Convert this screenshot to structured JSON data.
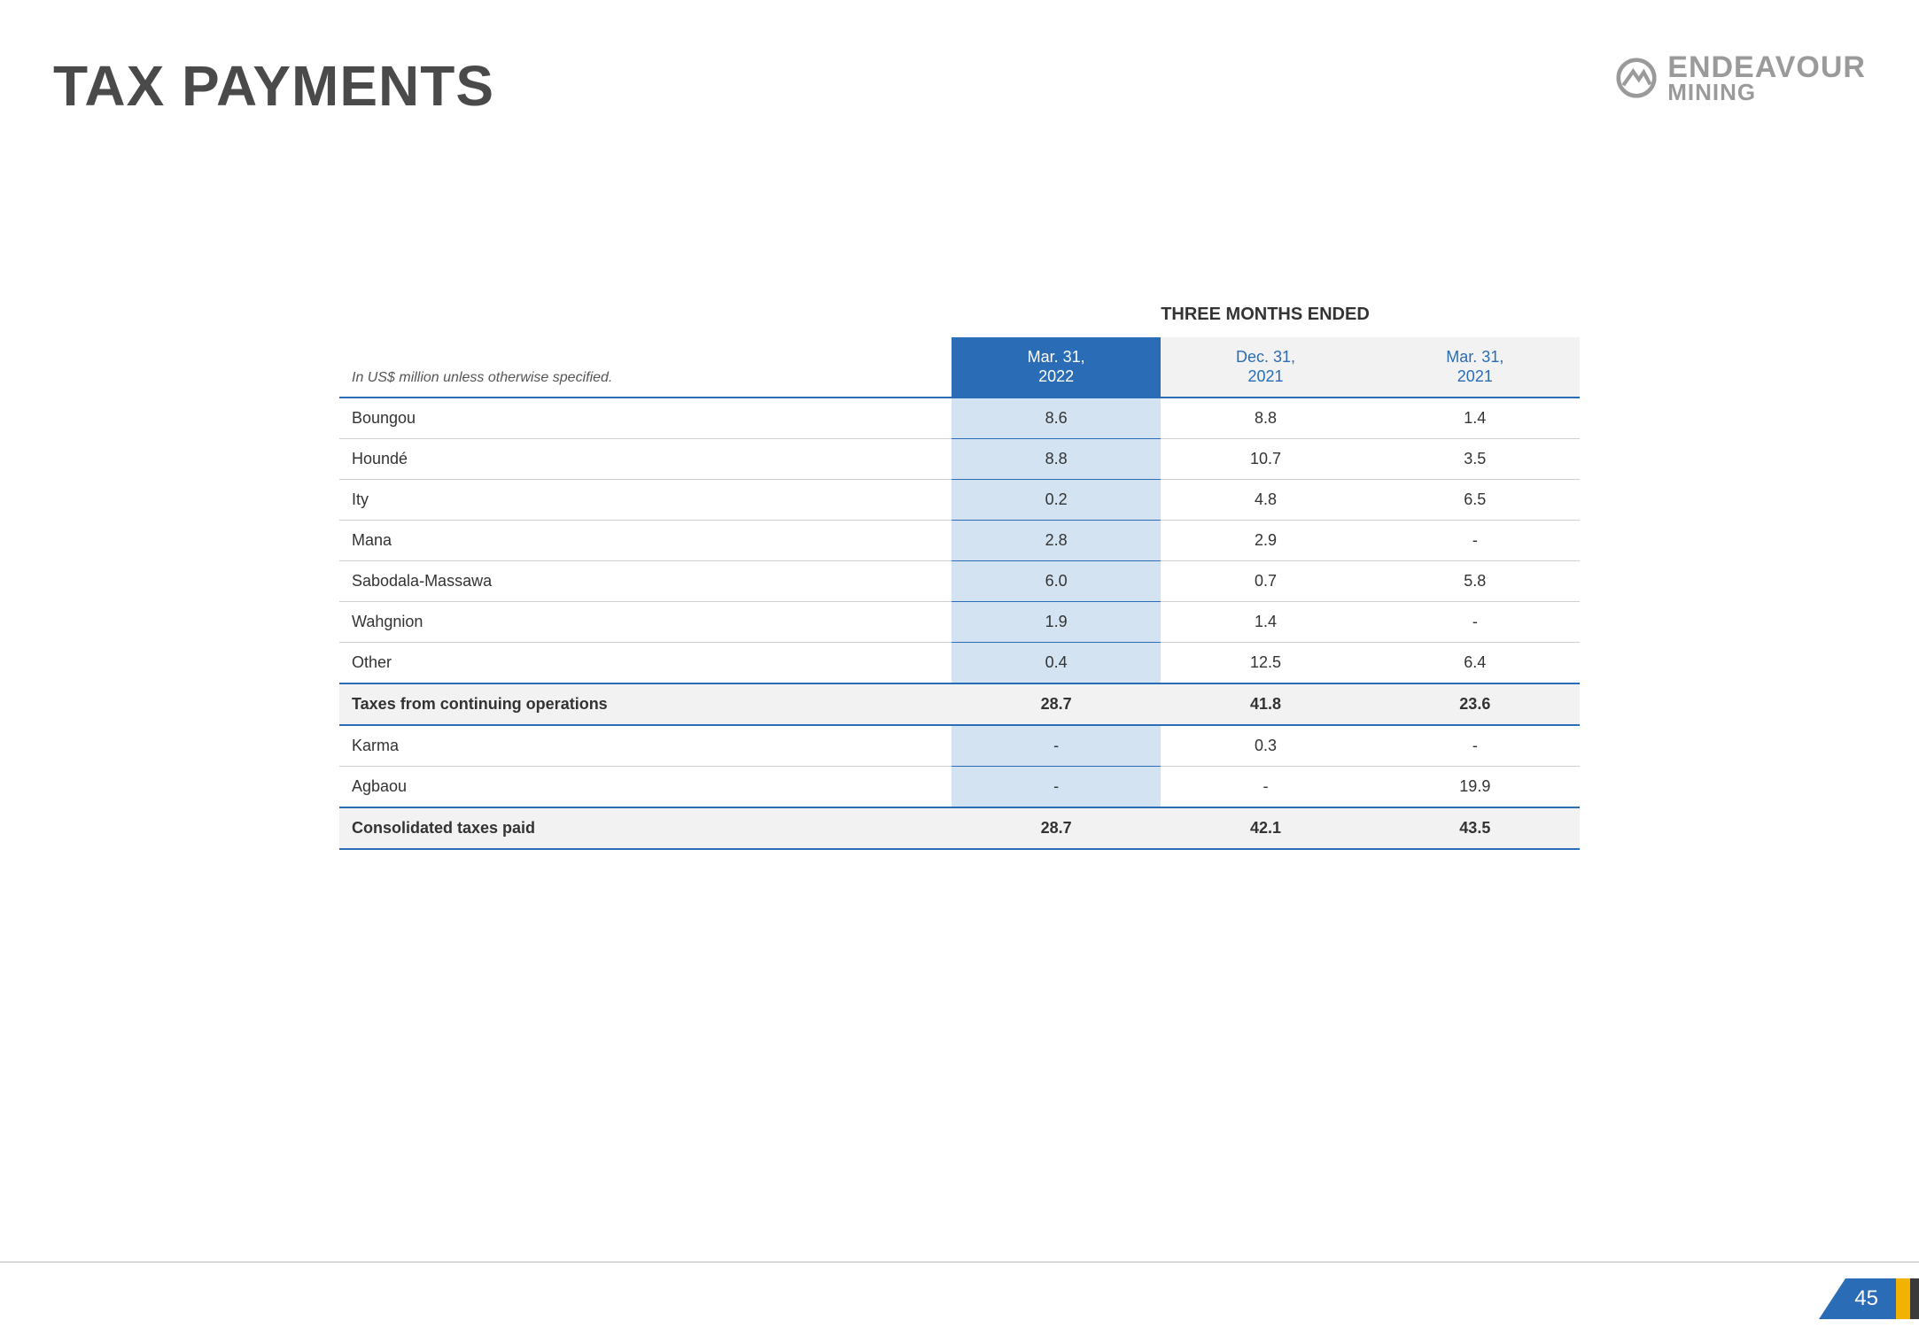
{
  "title": "TAX PAYMENTS",
  "logo": {
    "main": "ENDEAVOUR",
    "sub": "MINING"
  },
  "page_number": "45",
  "colors": {
    "accent": "#2a6cb5",
    "highlight_fill": "#d3e3f2",
    "header_gray": "#f2f2f2",
    "logo_gray": "#9a9a9a",
    "footer_yellow": "#f2b200",
    "footer_dark": "#3a3a3a"
  },
  "table": {
    "type": "table",
    "super_header": "THREE MONTHS ENDED",
    "label_header": "In US$ million unless otherwise specified.",
    "periods": [
      {
        "line1": "Mar. 31,",
        "line2": "2022",
        "highlight": true
      },
      {
        "line1": "Dec. 31,",
        "line2": "2021",
        "highlight": false
      },
      {
        "line1": "Mar. 31,",
        "line2": "2021",
        "highlight": false
      }
    ],
    "rows": [
      {
        "label": "Boungou",
        "values": [
          "8.6",
          "8.8",
          "1.4"
        ],
        "subtotal": false
      },
      {
        "label": "Houndé",
        "values": [
          "8.8",
          "10.7",
          "3.5"
        ],
        "subtotal": false
      },
      {
        "label": "Ity",
        "values": [
          "0.2",
          "4.8",
          "6.5"
        ],
        "subtotal": false
      },
      {
        "label": "Mana",
        "values": [
          "2.8",
          "2.9",
          "-"
        ],
        "subtotal": false
      },
      {
        "label": "Sabodala-Massawa",
        "values": [
          "6.0",
          "0.7",
          "5.8"
        ],
        "subtotal": false
      },
      {
        "label": "Wahgnion",
        "values": [
          "1.9",
          "1.4",
          "-"
        ],
        "subtotal": false
      },
      {
        "label": "Other",
        "values": [
          "0.4",
          "12.5",
          "6.4"
        ],
        "subtotal": false
      },
      {
        "label": "Taxes from continuing operations",
        "values": [
          "28.7",
          "41.8",
          "23.6"
        ],
        "subtotal": true
      },
      {
        "label": "Karma",
        "values": [
          "-",
          "0.3",
          "-"
        ],
        "subtotal": false
      },
      {
        "label": "Agbaou",
        "values": [
          "-",
          "-",
          "19.9"
        ],
        "subtotal": false
      },
      {
        "label": "Consolidated taxes paid",
        "values": [
          "28.7",
          "42.1",
          "43.5"
        ],
        "subtotal": true
      }
    ]
  }
}
